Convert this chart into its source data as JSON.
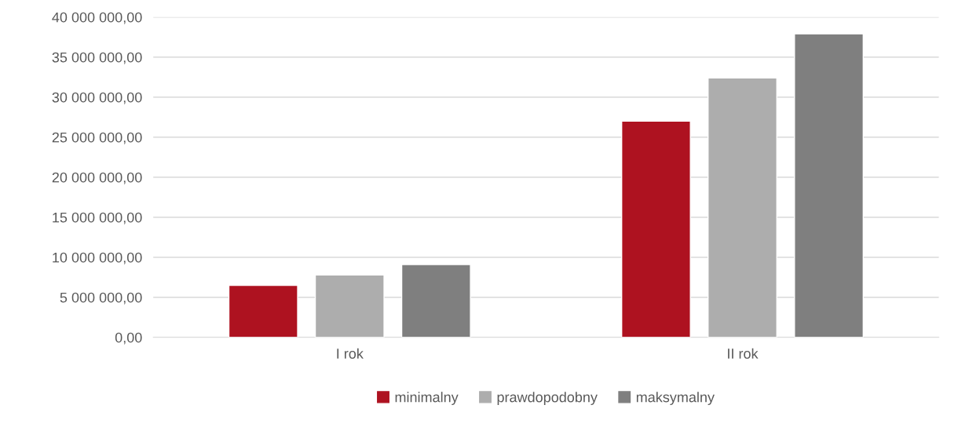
{
  "chart_data": {
    "type": "bar",
    "categories": [
      "I rok",
      "II rok"
    ],
    "series": [
      {
        "name": "minimalny",
        "color": "#ae1220",
        "values": [
          6500000,
          27000000
        ]
      },
      {
        "name": "prawdopodobny",
        "color": "#adadad",
        "values": [
          7800000,
          32400000
        ]
      },
      {
        "name": "maksymalny",
        "color": "#7f7f7f",
        "values": [
          9100000,
          37900000
        ]
      }
    ],
    "ylim": [
      0,
      40000000
    ],
    "yticks": [
      {
        "value": 0,
        "label": "0,00"
      },
      {
        "value": 5000000,
        "label": "5 000 000,00"
      },
      {
        "value": 10000000,
        "label": "10 000 000,00"
      },
      {
        "value": 15000000,
        "label": "15 000 000,00"
      },
      {
        "value": 20000000,
        "label": "20 000 000,00"
      },
      {
        "value": 25000000,
        "label": "25 000 000,00"
      },
      {
        "value": 30000000,
        "label": "30 000 000,00"
      },
      {
        "value": 35000000,
        "label": "35 000 000,00"
      },
      {
        "value": 40000000,
        "label": "40 000 000,00"
      }
    ],
    "grid": "y",
    "legend": "bottom"
  }
}
